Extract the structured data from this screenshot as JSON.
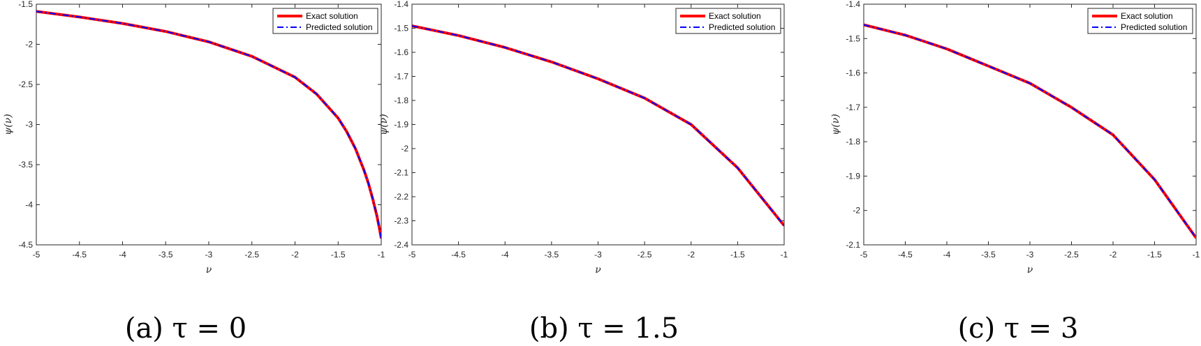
{
  "colors": {
    "exact": "#ff0000",
    "predicted": "#0000ff",
    "axis": "#262626"
  },
  "legend": {
    "exact_label": "Exact solution",
    "predicted_label": "Predicted solution",
    "placement": "top-right"
  },
  "chart_data": [
    {
      "type": "line",
      "caption": "(a) τ = 0",
      "xlabel": "ν",
      "ylabel": "ψ(ν)",
      "xlim": [
        -5,
        -1
      ],
      "ylim": [
        -4.5,
        -1.5
      ],
      "xticks": [
        -5,
        -4.5,
        -4,
        -3.5,
        -3,
        -2.5,
        -2,
        -1.5,
        -1
      ],
      "xtick_labels": [
        "-5",
        "-4.5",
        "-4",
        "-3.5",
        "-3",
        "-2.5",
        "-2",
        "-1.5",
        "-1"
      ],
      "yticks": [
        -1.5,
        -2,
        -2.5,
        -3,
        -3.5,
        -4,
        -4.5
      ],
      "ytick_labels": [
        "-1.5",
        "-2",
        "-2.5",
        "-3",
        "-3.5",
        "-4",
        "-4.5"
      ],
      "grid": false,
      "series": [
        {
          "name": "Exact solution",
          "style": "solid",
          "x": [
            -5,
            -4.5,
            -4,
            -3.5,
            -3,
            -2.5,
            -2,
            -1.75,
            -1.5,
            -1.4,
            -1.3,
            -1.2,
            -1.15,
            -1.1,
            -1.05,
            -1.02,
            -1
          ],
          "y": [
            -1.59,
            -1.66,
            -1.74,
            -1.84,
            -1.97,
            -2.15,
            -2.41,
            -2.62,
            -2.92,
            -3.09,
            -3.3,
            -3.57,
            -3.73,
            -3.92,
            -4.14,
            -4.3,
            -4.42
          ]
        },
        {
          "name": "Predicted solution",
          "style": "dashdot",
          "x": [
            -5,
            -4.5,
            -4,
            -3.5,
            -3,
            -2.5,
            -2,
            -1.75,
            -1.5,
            -1.4,
            -1.3,
            -1.2,
            -1.15,
            -1.1,
            -1.05,
            -1.02,
            -1
          ],
          "y": [
            -1.59,
            -1.66,
            -1.74,
            -1.84,
            -1.97,
            -2.15,
            -2.41,
            -2.62,
            -2.92,
            -3.09,
            -3.3,
            -3.57,
            -3.73,
            -3.92,
            -4.14,
            -4.3,
            -4.42
          ]
        }
      ]
    },
    {
      "type": "line",
      "caption": "(b) τ = 1.5",
      "xlabel": "ν",
      "ylabel": "ψ(ν)",
      "xlim": [
        -5,
        -1
      ],
      "ylim": [
        -2.4,
        -1.4
      ],
      "xticks": [
        -5,
        -4.5,
        -4,
        -3.5,
        -3,
        -2.5,
        -2,
        -1.5,
        -1
      ],
      "xtick_labels": [
        "-5",
        "-4.5",
        "-4",
        "-3.5",
        "-3",
        "-2.5",
        "-2",
        "-1.5",
        "-1"
      ],
      "yticks": [
        -1.4,
        -1.5,
        -1.6,
        -1.7,
        -1.8,
        -1.9,
        -2,
        -2.1,
        -2.2,
        -2.3,
        -2.4
      ],
      "ytick_labels": [
        "-1.4",
        "-1.5",
        "-1.6",
        "-1.7",
        "-1.8",
        "-1.9",
        "-2",
        "-2.1",
        "-2.2",
        "-2.3",
        "-2.4"
      ],
      "grid": false,
      "series": [
        {
          "name": "Exact solution",
          "style": "solid",
          "x": [
            -5,
            -4.5,
            -4,
            -3.5,
            -3,
            -2.5,
            -2,
            -1.5,
            -1
          ],
          "y": [
            -1.49,
            -1.53,
            -1.58,
            -1.64,
            -1.71,
            -1.79,
            -1.9,
            -2.08,
            -2.32
          ]
        },
        {
          "name": "Predicted solution",
          "style": "dashdot",
          "x": [
            -5,
            -4.5,
            -4,
            -3.5,
            -3,
            -2.5,
            -2,
            -1.5,
            -1
          ],
          "y": [
            -1.49,
            -1.53,
            -1.58,
            -1.64,
            -1.71,
            -1.79,
            -1.9,
            -2.08,
            -2.32
          ]
        }
      ]
    },
    {
      "type": "line",
      "caption": "(c) τ = 3",
      "xlabel": "ν",
      "ylabel": "ψ(ν)",
      "xlim": [
        -5,
        -1
      ],
      "ylim": [
        -2.1,
        -1.4
      ],
      "xticks": [
        -5,
        -4.5,
        -4,
        -3.5,
        -3,
        -2.5,
        -2,
        -1.5,
        -1
      ],
      "xtick_labels": [
        "-5",
        "-4.5",
        "-4",
        "-3.5",
        "-3",
        "-2.5",
        "-2",
        "-1.5",
        "-1"
      ],
      "yticks": [
        -1.4,
        -1.5,
        -1.6,
        -1.7,
        -1.8,
        -1.9,
        -2,
        -2.1
      ],
      "ytick_labels": [
        "-1.4",
        "-1.5",
        "-1.6",
        "-1.7",
        "-1.8",
        "-1.9",
        "-2",
        "-2.1"
      ],
      "grid": false,
      "series": [
        {
          "name": "Exact solution",
          "style": "solid",
          "x": [
            -5,
            -4.5,
            -4,
            -3.5,
            -3,
            -2.5,
            -2,
            -1.5,
            -1
          ],
          "y": [
            -1.46,
            -1.49,
            -1.53,
            -1.58,
            -1.63,
            -1.7,
            -1.78,
            -1.91,
            -2.08
          ]
        },
        {
          "name": "Predicted solution",
          "style": "dashdot",
          "x": [
            -5,
            -4.5,
            -4,
            -3.5,
            -3,
            -2.5,
            -2,
            -1.5,
            -1
          ],
          "y": [
            -1.46,
            -1.49,
            -1.53,
            -1.58,
            -1.63,
            -1.7,
            -1.78,
            -1.91,
            -2.08
          ]
        }
      ]
    }
  ]
}
